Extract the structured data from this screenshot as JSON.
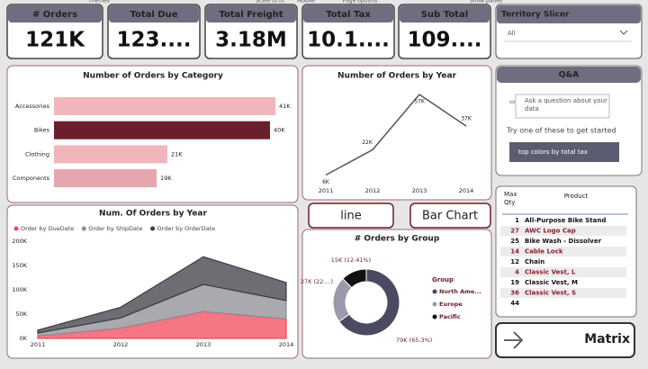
{
  "ribbon": [
    "Themes",
    "Scale to fit",
    "Mobile",
    "Page options",
    "Show panes"
  ],
  "cards": [
    {
      "title": "# Orders",
      "value": "121K"
    },
    {
      "title": "Total Due",
      "value": "123...."
    },
    {
      "title": "Total Freight",
      "value": "3.18M"
    },
    {
      "title": "Total Tax",
      "value": "10.1...."
    },
    {
      "title": "Sub Total",
      "value": "109...."
    }
  ],
  "slicer": {
    "title": "Territory Slicer",
    "value": "All"
  },
  "qa": {
    "title": "Q&A",
    "placeholder": "Ask a question about your data",
    "prompt": "Try one of these to get started",
    "suggestion": "top colors by total tax"
  },
  "buttons": {
    "line": "line",
    "bar": "Bar Chart",
    "matrix": "Matrix"
  },
  "matrix": {
    "headers": [
      "Max Qty",
      "Product"
    ],
    "rows": [
      [
        1,
        "All-Purpose Bike Stand"
      ],
      [
        27,
        "AWC Logo Cap"
      ],
      [
        25,
        "Bike Wash - Dissolver"
      ],
      [
        14,
        "Cable Lock"
      ],
      [
        12,
        "Chain"
      ],
      [
        4,
        "Classic Vest, L"
      ],
      [
        19,
        "Classic Vest, M"
      ],
      [
        36,
        "Classic Vest, S"
      ],
      [
        44
      ]
    ]
  },
  "chart_data": [
    {
      "type": "bar",
      "orientation": "horizontal",
      "title": "Number of Orders by Category",
      "categories": [
        "Accessories",
        "Bikes",
        "Clothing",
        "Components"
      ],
      "values": [
        41000,
        40000,
        21000,
        19000
      ],
      "value_labels": [
        "41K",
        "40K",
        "21K",
        "19K"
      ],
      "colors": [
        "#f0b6bc",
        "#6b1f2a",
        "#f0b6bc",
        "#e6a6ae"
      ]
    },
    {
      "type": "line",
      "title": "Number of Orders by Year",
      "categories": [
        "2011",
        "2012",
        "2013",
        "2014"
      ],
      "values": [
        6000,
        22000,
        57000,
        37000
      ],
      "value_labels": [
        "6K",
        "22K",
        "57K",
        "37K"
      ],
      "color": "#555555"
    },
    {
      "type": "area",
      "stacked": true,
      "title": "Num. Of Orders by Year",
      "categories": [
        "2011",
        "2012",
        "2013",
        "2014"
      ],
      "series": [
        {
          "name": "Order by DueDate",
          "color": "#f04a5a",
          "values": [
            5000,
            21000,
            55000,
            40000
          ]
        },
        {
          "name": "Order by ShipDate",
          "color": "#8c8c94",
          "values": [
            6000,
            21000,
            56000,
            38000
          ]
        },
        {
          "name": "Order by OrderDate",
          "color": "#3c3c44",
          "values": [
            6000,
            22000,
            57000,
            37000
          ]
        }
      ],
      "ylim": [
        0,
        200000
      ],
      "yticks": [
        {
          "value": 0,
          "label": "0K"
        },
        {
          "value": 50000,
          "label": "50K"
        },
        {
          "value": 100000,
          "label": "100K"
        },
        {
          "value": 150000,
          "label": "150K"
        },
        {
          "value": 200000,
          "label": "200K"
        }
      ]
    },
    {
      "type": "pie",
      "donut": true,
      "title": "# Orders by Group",
      "legend_title": "Group",
      "categories": [
        "North Ame...",
        "Europe",
        "Pacific"
      ],
      "values": [
        79000,
        27000,
        15000
      ],
      "value_labels": [
        "79K (65.3%)",
        "27K (22....)",
        "15K (12.41%)"
      ],
      "colors": [
        "#4a4a63",
        "#9a9aaa",
        "#111111"
      ]
    }
  ]
}
